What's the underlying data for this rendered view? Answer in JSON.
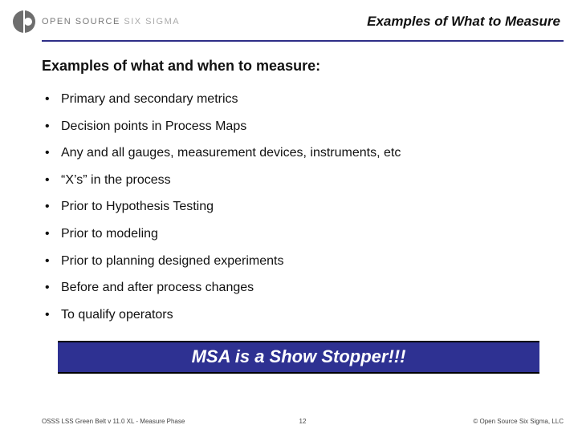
{
  "logo": {
    "line1": "OPEN SOURCE",
    "line2": "SIX SIGMA"
  },
  "header_title": "Examples of What to Measure",
  "subtitle": "Examples of what and when to measure:",
  "bullets": [
    "Primary and secondary metrics",
    "Decision points in Process Maps",
    "Any and all gauges, measurement devices, instruments, etc",
    "“X’s” in the process",
    "Prior to Hypothesis Testing",
    "Prior to modeling",
    "Prior to planning designed experiments",
    "Before and after process changes",
    "To qualify operators"
  ],
  "banner": "MSA is a Show Stopper!!!",
  "footer": {
    "left": "OSSS LSS Green Belt v 11.0 XL - Measure Phase",
    "page": "12",
    "right": "© Open Source Six Sigma, LLC"
  },
  "colors": {
    "rule": "#2e2e87",
    "banner_bg": "#2e3192",
    "banner_text": "#ffffff",
    "text": "#111111",
    "logo_gray": "#6e6e6e"
  }
}
